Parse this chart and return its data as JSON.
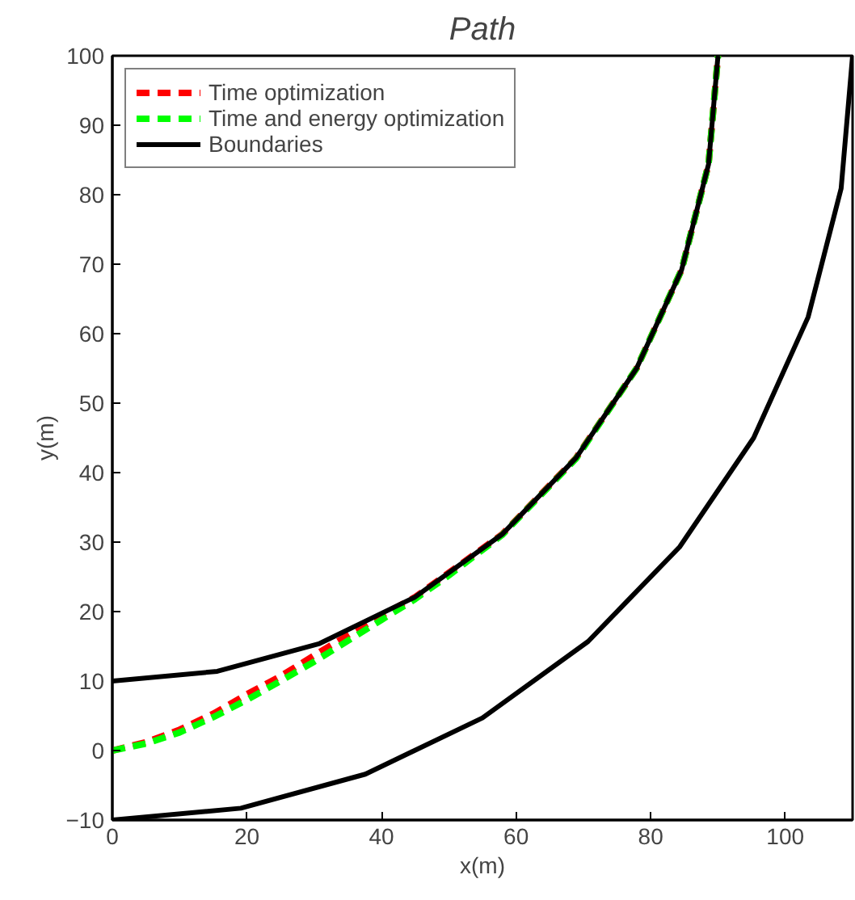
{
  "chart_data": {
    "type": "line",
    "title": "Path",
    "xlabel": "x(m)",
    "ylabel": "y(m)",
    "xlim": [
      0,
      110
    ],
    "ylim": [
      -10,
      100
    ],
    "xticks": [
      0,
      20,
      40,
      60,
      80,
      100
    ],
    "yticks": [
      -10,
      0,
      10,
      20,
      30,
      40,
      50,
      60,
      70,
      80,
      90,
      100
    ],
    "grid": false,
    "legend": "top left",
    "marker": "none",
    "series": [
      {
        "name": "Time optimization",
        "color": "#ff0000",
        "line_style": "dashed",
        "x": [
          0,
          5,
          10,
          15,
          20,
          25,
          30,
          35,
          40,
          45,
          57.9,
          68.9,
          77.9,
          84.6,
          88.6,
          90
        ],
        "values": [
          0,
          1.2,
          3,
          5.3,
          8.1,
          10.7,
          13.7,
          16.6,
          19.4,
          22.1,
          31.1,
          42.1,
          55,
          69.2,
          84.4,
          100
        ]
      },
      {
        "name": "Time and energy optimization",
        "color": "#00ff00",
        "line_style": "dashed",
        "x": [
          0,
          5,
          10,
          15,
          20,
          25,
          30,
          35,
          40,
          45,
          50,
          57.9,
          68.9,
          77.9,
          84.6,
          88.6,
          90
        ],
        "values": [
          0,
          1,
          2.6,
          4.8,
          7.3,
          10,
          12.8,
          15.8,
          18.8,
          21.8,
          25.2,
          31,
          42,
          55,
          69.2,
          84.4,
          100
        ]
      },
      {
        "name": "Boundaries",
        "color": "#000000",
        "line_style": "solid",
        "x": [
          0,
          15.6,
          30.8,
          45,
          57.9,
          68.9,
          77.9,
          84.6,
          88.6,
          90,
          null,
          0,
          19.1,
          37.6,
          55,
          70.7,
          84.3,
          95.3,
          103.4,
          108.3,
          110
        ],
        "values": [
          10,
          11.4,
          15.4,
          22.1,
          31.1,
          42.1,
          55,
          69.2,
          84.4,
          100,
          null,
          -10,
          -8.3,
          -3.4,
          4.7,
          15.7,
          29.3,
          45,
          62.4,
          80.9,
          100
        ]
      }
    ]
  }
}
